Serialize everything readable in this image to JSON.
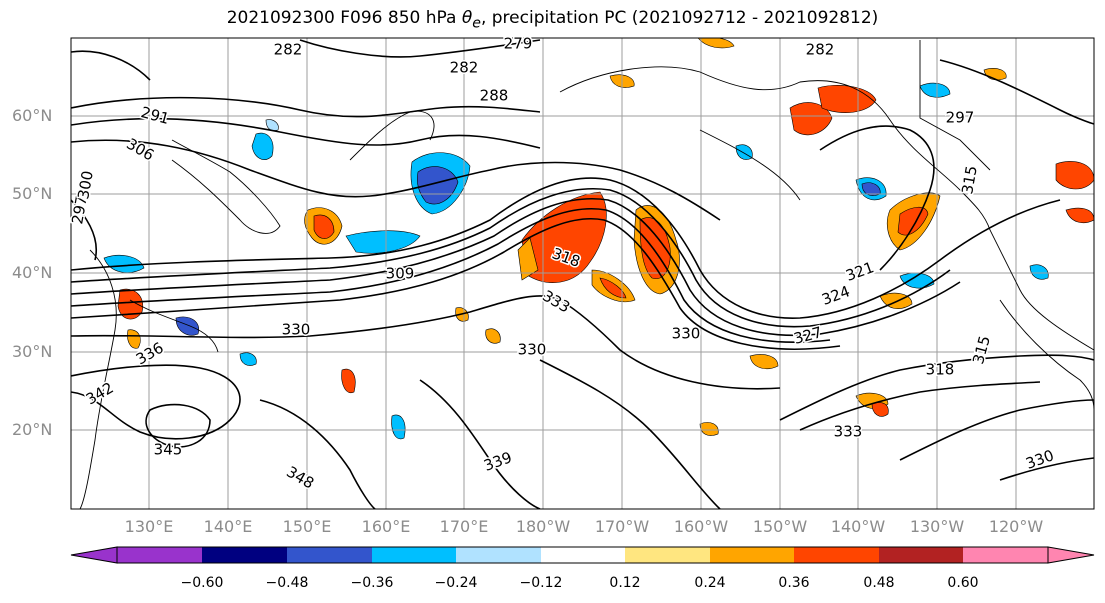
{
  "title": {
    "run": "2021092300 F096 850 hPa",
    "var_symbol": "θ",
    "var_sub": "e",
    "rest": ", precipitation PC (2021092712 - 2021092812)"
  },
  "map": {
    "latitude_labels": [
      "60°N",
      "50°N",
      "40°N",
      "30°N",
      "20°N"
    ],
    "longitude_labels": [
      "130°E",
      "140°E",
      "150°E",
      "160°E",
      "170°E",
      "180°W",
      "170°W",
      "160°W",
      "150°W",
      "140°W",
      "130°W",
      "120°W"
    ],
    "contour_labels": [
      "282",
      "279",
      "282",
      "282",
      "288",
      "291",
      "297",
      "297",
      "300",
      "306",
      "309",
      "315",
      "318",
      "321",
      "324",
      "327",
      "330",
      "330",
      "330",
      "333",
      "333",
      "336",
      "339",
      "342",
      "345",
      "348",
      "318",
      "315",
      "330"
    ],
    "contour_color": "#000000",
    "grid_color": "#9e9e9e"
  },
  "colorbar": {
    "colors": [
      "#9933cc",
      "#000080",
      "#3355cc",
      "#00bfff",
      "#b0e2ff",
      "#ffffff",
      "#ffe680",
      "#ffa500",
      "#ff4500",
      "#b22222",
      "#ff85b0"
    ],
    "tick_labels": [
      "−0.60",
      "−0.48",
      "−0.36",
      "−0.24",
      "−0.12",
      "0.12",
      "0.24",
      "0.36",
      "0.48",
      "0.60"
    ]
  }
}
